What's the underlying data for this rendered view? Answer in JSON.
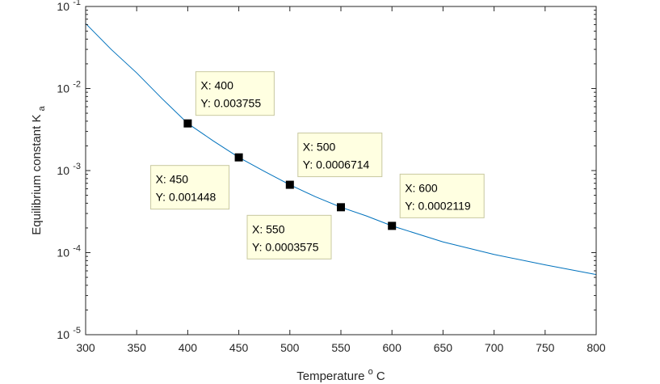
{
  "chart_data": {
    "type": "line",
    "title": "",
    "xlabel": "Temperature",
    "xlabel_sup": "o",
    "xlabel_unit": "C",
    "ylabel": "Equilibrium constant K",
    "ylabel_sub": "a",
    "xlim": [
      300,
      800
    ],
    "ylim": [
      1e-05,
      0.1
    ],
    "yscale": "log",
    "grid": false,
    "line_color": "#0072BD",
    "x_ticks": [
      {
        "value": 300,
        "label": "300"
      },
      {
        "value": 350,
        "label": "350"
      },
      {
        "value": 400,
        "label": "400"
      },
      {
        "value": 450,
        "label": "450"
      },
      {
        "value": 500,
        "label": "500"
      },
      {
        "value": 550,
        "label": "550"
      },
      {
        "value": 600,
        "label": "600"
      },
      {
        "value": 650,
        "label": "650"
      },
      {
        "value": 700,
        "label": "700"
      },
      {
        "value": 750,
        "label": "750"
      },
      {
        "value": 800,
        "label": "800"
      }
    ],
    "y_ticks": [
      {
        "value": 1e-05,
        "base": "10",
        "exp": "-5"
      },
      {
        "value": 0.0001,
        "base": "10",
        "exp": "-4"
      },
      {
        "value": 0.001,
        "base": "10",
        "exp": "-3"
      },
      {
        "value": 0.01,
        "base": "10",
        "exp": "-2"
      },
      {
        "value": 0.1,
        "base": "10",
        "exp": "-1"
      }
    ],
    "series": [
      {
        "x": [
          300,
          325,
          350,
          375,
          400,
          425,
          450,
          475,
          500,
          525,
          550,
          575,
          600,
          650,
          700,
          750,
          800
        ],
        "y": [
          0.062,
          0.03,
          0.0155,
          0.0075,
          0.003755,
          0.0023,
          0.001448,
          0.00098,
          0.0006714,
          0.00048,
          0.0003575,
          0.00028,
          0.0002119,
          0.000135,
          9.5e-05,
          7.1e-05,
          5.4e-05
        ]
      }
    ],
    "markers": [
      {
        "x": 400,
        "y": 0.003755
      },
      {
        "x": 450,
        "y": 0.001448
      },
      {
        "x": 500,
        "y": 0.0006714
      },
      {
        "x": 550,
        "y": 0.0003575
      },
      {
        "x": 600,
        "y": 0.0002119
      }
    ],
    "datatips": [
      {
        "x_text": "X: 400",
        "y_text": "Y: 0.003755",
        "anchor": "above-right"
      },
      {
        "x_text": "X: 450",
        "y_text": "Y: 0.001448",
        "anchor": "below-left"
      },
      {
        "x_text": "X: 500",
        "y_text": "Y: 0.0006714",
        "anchor": "above-right"
      },
      {
        "x_text": "X: 550",
        "y_text": "Y: 0.0003575",
        "anchor": "below-left"
      },
      {
        "x_text": "X: 600",
        "y_text": "Y: 0.0002119",
        "anchor": "above-right"
      }
    ]
  }
}
